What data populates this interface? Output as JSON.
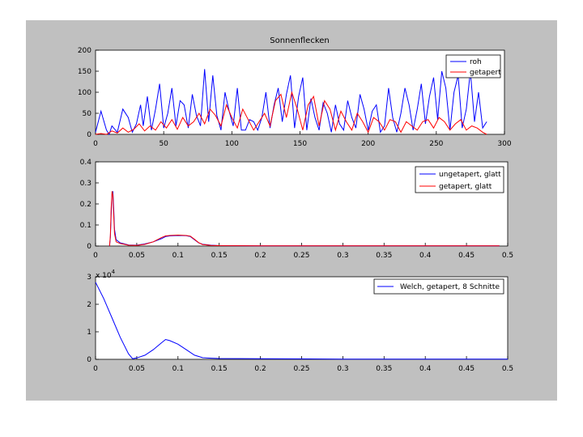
{
  "colors": {
    "background": "#ffffff",
    "figure": "#c0c0c0",
    "axes": "#ffffff",
    "blue": "#0000ff",
    "red": "#ff0000"
  },
  "chart_data": [
    {
      "type": "line",
      "title": "Sonnenflecken",
      "xlabel": "",
      "ylabel": "",
      "xlim": [
        0,
        300
      ],
      "ylim": [
        0,
        200
      ],
      "xticks": [
        0,
        50,
        100,
        150,
        200,
        250,
        300
      ],
      "xtick_labels": [
        "0",
        "50",
        "100",
        "150",
        "200",
        "250",
        "300"
      ],
      "yticks": [
        0,
        50,
        100,
        150,
        200
      ],
      "ytick_labels": [
        "0",
        "50",
        "100",
        "150",
        "200"
      ],
      "legend": "top-right",
      "series": [
        {
          "name": "roh",
          "color": "blue",
          "x": [
            0,
            4,
            8,
            10,
            12,
            16,
            20,
            24,
            27,
            30,
            33,
            35,
            38,
            41,
            44,
            47,
            50,
            53,
            56,
            59,
            62,
            65,
            68,
            71,
            74,
            77,
            80,
            83,
            86,
            89,
            92,
            95,
            98,
            101,
            104,
            107,
            110,
            113,
            116,
            119,
            122,
            125,
            128,
            131,
            134,
            137,
            140,
            143,
            146,
            149,
            152,
            155,
            158,
            161,
            164,
            167,
            170,
            173,
            176,
            179,
            182,
            185,
            188,
            191,
            194,
            197,
            200,
            203,
            206,
            209,
            212,
            215,
            218,
            221,
            224,
            227,
            230,
            233,
            236,
            239,
            242,
            245,
            248,
            251,
            254,
            257,
            260,
            263,
            266,
            269,
            272,
            275,
            278,
            281,
            284,
            287
          ],
          "y": [
            5,
            55,
            10,
            0,
            20,
            5,
            60,
            40,
            5,
            25,
            70,
            20,
            90,
            10,
            60,
            120,
            15,
            50,
            110,
            20,
            80,
            70,
            15,
            95,
            45,
            20,
            155,
            30,
            140,
            45,
            10,
            100,
            55,
            20,
            110,
            10,
            10,
            35,
            30,
            10,
            40,
            100,
            15,
            70,
            110,
            30,
            95,
            140,
            15,
            90,
            135,
            10,
            85,
            40,
            10,
            75,
            50,
            5,
            70,
            25,
            10,
            80,
            40,
            15,
            95,
            60,
            10,
            55,
            70,
            5,
            20,
            110,
            40,
            5,
            50,
            110,
            70,
            10,
            60,
            120,
            25,
            90,
            135,
            35,
            150,
            110,
            10,
            100,
            140,
            15,
            60,
            150,
            30,
            100,
            15,
            30
          ]
        },
        {
          "name": "getapert",
          "color": "red",
          "x": [
            0,
            4,
            8,
            12,
            16,
            20,
            24,
            28,
            32,
            36,
            40,
            44,
            48,
            52,
            56,
            60,
            64,
            68,
            72,
            76,
            80,
            84,
            88,
            92,
            96,
            100,
            104,
            108,
            112,
            116,
            120,
            124,
            128,
            132,
            136,
            140,
            144,
            148,
            152,
            156,
            160,
            164,
            168,
            172,
            176,
            180,
            184,
            188,
            192,
            196,
            200,
            204,
            208,
            212,
            216,
            220,
            224,
            228,
            232,
            236,
            240,
            244,
            248,
            252,
            256,
            260,
            264,
            268,
            272,
            276,
            280,
            284,
            287
          ],
          "y": [
            0,
            2,
            0,
            8,
            3,
            15,
            5,
            12,
            25,
            8,
            20,
            10,
            30,
            15,
            35,
            12,
            40,
            20,
            30,
            50,
            25,
            60,
            45,
            20,
            70,
            40,
            15,
            60,
            35,
            10,
            30,
            50,
            20,
            80,
            95,
            40,
            100,
            60,
            10,
            70,
            90,
            20,
            80,
            60,
            10,
            55,
            30,
            10,
            50,
            30,
            5,
            40,
            30,
            10,
            35,
            30,
            5,
            30,
            20,
            10,
            30,
            35,
            15,
            40,
            30,
            10,
            25,
            35,
            10,
            20,
            15,
            5,
            0
          ]
        }
      ],
      "legend_entries": [
        "roh",
        "getapert"
      ]
    },
    {
      "type": "line",
      "title": "",
      "xlim": [
        0,
        0.5
      ],
      "ylim": [
        0,
        0.4
      ],
      "xticks": [
        0,
        0.05,
        0.1,
        0.15,
        0.2,
        0.25,
        0.3,
        0.35,
        0.4,
        0.45,
        0.5
      ],
      "xtick_labels": [
        "0",
        "0.05",
        "0.1",
        "0.15",
        "0.2",
        "0.25",
        "0.3",
        "0.35",
        "0.4",
        "0.45",
        "0.5"
      ],
      "yticks": [
        0,
        0.1,
        0.2,
        0.3,
        0.4
      ],
      "ytick_labels": [
        "0",
        "0.1",
        "0.2",
        "0.3",
        "0.4"
      ],
      "legend": "top-right",
      "series": [
        {
          "name": "ungetapert, glatt",
          "color": "blue",
          "x": [
            0.017,
            0.018,
            0.019,
            0.02,
            0.021,
            0.022,
            0.023,
            0.025,
            0.03,
            0.035,
            0.04,
            0.05,
            0.06,
            0.07,
            0.08,
            0.085,
            0.09,
            0.1,
            0.11,
            0.115,
            0.12,
            0.125,
            0.13,
            0.14,
            0.15,
            0.2,
            0.3,
            0.4,
            0.49
          ],
          "y": [
            0,
            0.04,
            0.15,
            0.25,
            0.26,
            0.18,
            0.08,
            0.03,
            0.015,
            0.01,
            0.005,
            0.004,
            0.01,
            0.02,
            0.035,
            0.045,
            0.048,
            0.05,
            0.049,
            0.045,
            0.03,
            0.015,
            0.008,
            0.004,
            0.002,
            0.001,
            0.001,
            0.001,
            0.001
          ]
        },
        {
          "name": "getapert, glatt",
          "color": "red",
          "x": [
            0.017,
            0.018,
            0.019,
            0.02,
            0.021,
            0.022,
            0.023,
            0.025,
            0.03,
            0.035,
            0.04,
            0.05,
            0.06,
            0.07,
            0.08,
            0.085,
            0.09,
            0.1,
            0.11,
            0.115,
            0.12,
            0.125,
            0.13,
            0.14,
            0.15,
            0.2,
            0.3,
            0.4,
            0.49
          ],
          "y": [
            0,
            0.05,
            0.18,
            0.26,
            0.24,
            0.15,
            0.06,
            0.02,
            0.012,
            0.008,
            0.004,
            0.003,
            0.008,
            0.02,
            0.04,
            0.048,
            0.05,
            0.052,
            0.05,
            0.047,
            0.032,
            0.016,
            0.007,
            0.003,
            0.002,
            0.001,
            0.001,
            0.001,
            0.001
          ]
        }
      ],
      "legend_entries": [
        "ungetapert, glatt",
        "getapert, glatt"
      ]
    },
    {
      "type": "line",
      "title": "",
      "exponent_label": "x 10",
      "exponent": "4",
      "xlim": [
        0,
        0.5
      ],
      "ylim": [
        0,
        3
      ],
      "xticks": [
        0,
        0.05,
        0.1,
        0.15,
        0.2,
        0.25,
        0.3,
        0.35,
        0.4,
        0.45,
        0.5
      ],
      "xtick_labels": [
        "0",
        "0.05",
        "0.1",
        "0.15",
        "0.2",
        "0.25",
        "0.3",
        "0.35",
        "0.4",
        "0.45",
        "0.5"
      ],
      "yticks": [
        0,
        1,
        2,
        3
      ],
      "ytick_labels": [
        "0",
        "1",
        "2",
        "3"
      ],
      "legend": "top-right",
      "series": [
        {
          "name": "Welch, getapert, 8 Schnitte",
          "color": "blue",
          "x": [
            0,
            0.01,
            0.02,
            0.03,
            0.04,
            0.045,
            0.05,
            0.06,
            0.07,
            0.08,
            0.085,
            0.09,
            0.1,
            0.11,
            0.12,
            0.13,
            0.14,
            0.15,
            0.2,
            0.3,
            0.4,
            0.5
          ],
          "y": [
            2.8,
            2.2,
            1.5,
            0.8,
            0.2,
            0.02,
            0.05,
            0.15,
            0.35,
            0.6,
            0.72,
            0.68,
            0.55,
            0.35,
            0.15,
            0.06,
            0.04,
            0.03,
            0.02,
            0.01,
            0.01,
            0.01
          ]
        }
      ],
      "legend_entries": [
        "Welch, getapert, 8 Schnitte"
      ]
    }
  ]
}
